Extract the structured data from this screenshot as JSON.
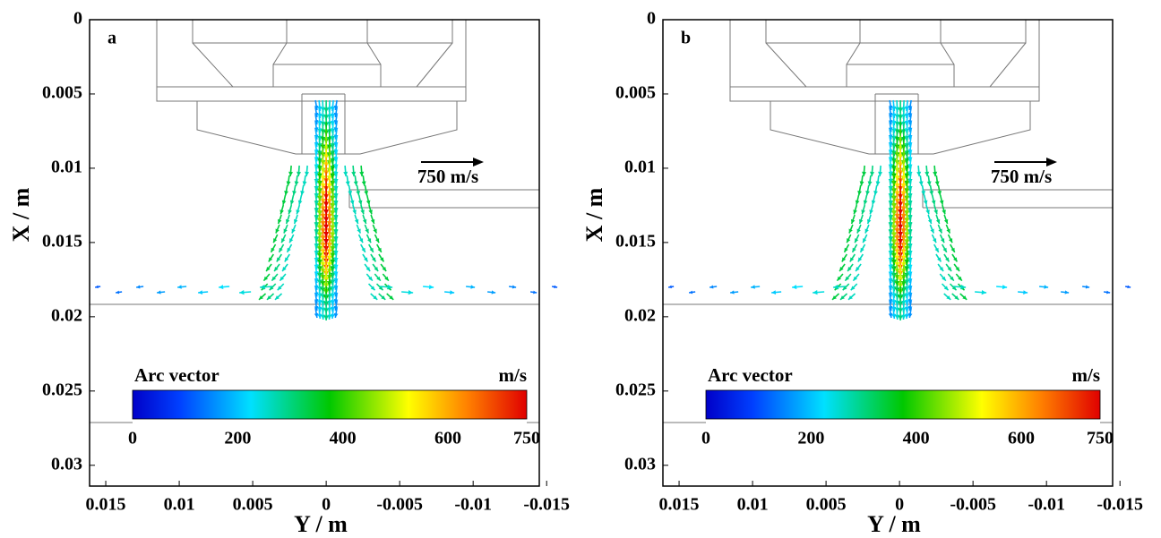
{
  "chart_data": [
    {
      "type": "vector-field",
      "panel_label": "a",
      "xlabel": "Y / m",
      "ylabel": "X / m",
      "xlim": [
        0.0161,
        -0.0145
      ],
      "xticks": [
        0.015,
        0.01,
        0.005,
        0,
        -0.005,
        -0.01,
        -0.015
      ],
      "ylim": [
        0,
        0.0314
      ],
      "yticks": [
        0,
        0.005,
        0.01,
        0.015,
        0.02,
        0.025,
        0.03
      ],
      "reference_label": "750 m/s",
      "colorbar": {
        "title": "Arc vector",
        "unit": "m/s",
        "range": [
          0,
          750
        ],
        "ticks": [
          0,
          200,
          400,
          600,
          750
        ],
        "colormap": "jet"
      }
    },
    {
      "type": "vector-field",
      "panel_label": "b",
      "xlabel": "Y / m",
      "ylabel": "X / m",
      "xlim": [
        0.0161,
        -0.0145
      ],
      "xticks": [
        0.015,
        0.01,
        0.005,
        0,
        -0.005,
        -0.01,
        -0.015
      ],
      "ylim": [
        0,
        0.0314
      ],
      "yticks": [
        0,
        0.005,
        0.01,
        0.015,
        0.02,
        0.025,
        0.03
      ],
      "reference_label": "750 m/s",
      "colorbar": {
        "title": "Arc vector",
        "unit": "m/s",
        "range": [
          0,
          750
        ],
        "ticks": [
          0,
          200,
          400,
          600,
          750
        ],
        "colormap": "jet"
      }
    }
  ]
}
